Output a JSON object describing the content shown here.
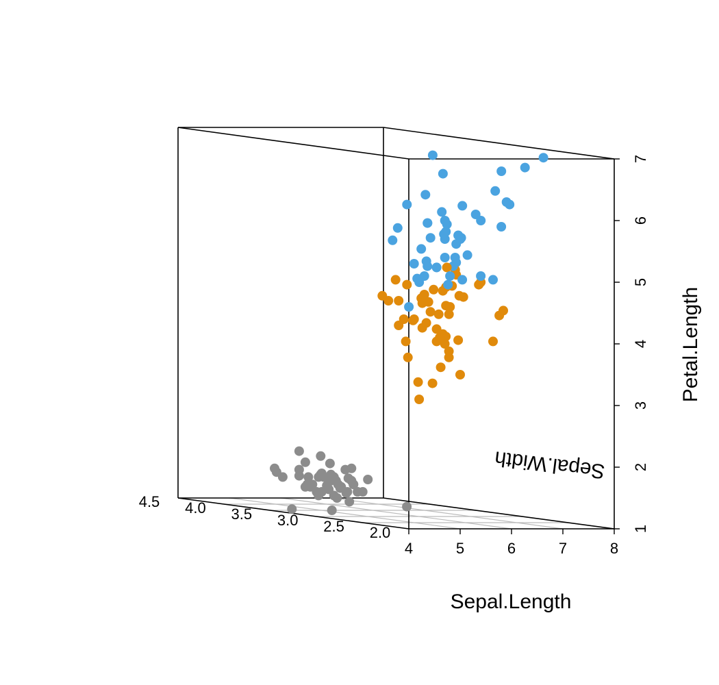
{
  "chart_data": {
    "type": "scatter",
    "plot_style": "3d-box-scatter",
    "colors": {
      "gray": "#8c8c8c",
      "orange": "#e08a0b",
      "blue": "#4aa3e0",
      "frame": "#000000",
      "grid": "#bbbbbb"
    },
    "x_axis": {
      "label": "Sepal.Length",
      "range": [
        4,
        8
      ],
      "ticks": [
        "4",
        "5",
        "6",
        "7",
        "8"
      ]
    },
    "y_axis": {
      "label": "Sepal.Width",
      "range": [
        2.0,
        4.5
      ],
      "ticks": [
        "2.0",
        "2.5",
        "3.0",
        "3.5",
        "4.0",
        "4.5"
      ]
    },
    "z_axis": {
      "label": "Petal.Length",
      "range": [
        1,
        7
      ],
      "ticks": [
        "1",
        "2",
        "3",
        "4",
        "5",
        "6",
        "7"
      ]
    },
    "grid": "bottom plane",
    "series": [
      {
        "color_key": "gray",
        "points": [
          [
            5.1,
            3.5,
            1.4
          ],
          [
            4.9,
            3.0,
            1.4
          ],
          [
            4.7,
            3.2,
            1.3
          ],
          [
            4.6,
            3.1,
            1.5
          ],
          [
            5.0,
            3.6,
            1.4
          ],
          [
            5.4,
            3.9,
            1.7
          ],
          [
            4.6,
            3.4,
            1.4
          ],
          [
            5.0,
            3.4,
            1.5
          ],
          [
            4.4,
            2.9,
            1.4
          ],
          [
            4.9,
            3.1,
            1.5
          ],
          [
            5.4,
            3.7,
            1.5
          ],
          [
            4.8,
            3.4,
            1.6
          ],
          [
            4.8,
            3.0,
            1.4
          ],
          [
            4.3,
            3.0,
            1.1
          ],
          [
            5.8,
            4.0,
            1.2
          ],
          [
            5.7,
            4.4,
            1.5
          ],
          [
            5.4,
            3.9,
            1.3
          ],
          [
            5.1,
            3.5,
            1.4
          ],
          [
            5.7,
            3.8,
            1.7
          ],
          [
            5.1,
            3.8,
            1.5
          ],
          [
            5.4,
            3.4,
            1.7
          ],
          [
            5.1,
            3.7,
            1.5
          ],
          [
            4.6,
            3.6,
            1.0
          ],
          [
            5.1,
            3.3,
            1.7
          ],
          [
            4.8,
            3.4,
            1.9
          ],
          [
            5.0,
            3.0,
            1.6
          ],
          [
            5.0,
            3.4,
            1.6
          ],
          [
            5.2,
            3.5,
            1.5
          ],
          [
            5.2,
            3.4,
            1.4
          ],
          [
            4.7,
            3.2,
            1.6
          ],
          [
            4.8,
            3.1,
            1.6
          ],
          [
            5.4,
            3.4,
            1.5
          ],
          [
            5.2,
            4.1,
            1.5
          ],
          [
            5.5,
            4.2,
            1.4
          ],
          [
            4.9,
            3.1,
            1.5
          ],
          [
            5.0,
            3.2,
            1.2
          ],
          [
            5.5,
            3.5,
            1.3
          ],
          [
            4.9,
            3.6,
            1.4
          ],
          [
            4.4,
            3.0,
            1.3
          ],
          [
            5.1,
            3.4,
            1.5
          ],
          [
            5.0,
            3.5,
            1.3
          ],
          [
            4.5,
            2.3,
            1.3
          ],
          [
            4.4,
            3.2,
            1.3
          ],
          [
            5.0,
            3.5,
            1.6
          ],
          [
            5.1,
            3.8,
            1.9
          ],
          [
            4.8,
            3.0,
            1.4
          ],
          [
            5.1,
            3.8,
            1.6
          ],
          [
            4.6,
            3.2,
            1.4
          ],
          [
            5.3,
            3.7,
            1.5
          ],
          [
            5.0,
            3.3,
            1.4
          ]
        ]
      },
      {
        "color_key": "orange",
        "points": [
          [
            7.0,
            3.2,
            4.7
          ],
          [
            6.4,
            3.2,
            4.5
          ],
          [
            6.9,
            3.1,
            4.9
          ],
          [
            5.5,
            2.3,
            4.0
          ],
          [
            6.5,
            2.8,
            4.6
          ],
          [
            5.7,
            2.8,
            4.5
          ],
          [
            6.3,
            3.3,
            4.7
          ],
          [
            4.9,
            2.4,
            3.3
          ],
          [
            6.6,
            2.9,
            4.6
          ],
          [
            5.2,
            2.7,
            3.9
          ],
          [
            5.0,
            2.0,
            3.5
          ],
          [
            5.9,
            3.0,
            4.2
          ],
          [
            6.0,
            2.2,
            4.0
          ],
          [
            6.1,
            2.9,
            4.7
          ],
          [
            5.6,
            2.9,
            3.6
          ],
          [
            6.7,
            3.1,
            4.4
          ],
          [
            5.6,
            3.0,
            4.5
          ],
          [
            5.8,
            2.7,
            4.1
          ],
          [
            6.2,
            2.2,
            4.5
          ],
          [
            5.6,
            2.5,
            3.9
          ],
          [
            5.9,
            3.2,
            4.8
          ],
          [
            6.1,
            2.8,
            4.0
          ],
          [
            6.3,
            2.5,
            4.9
          ],
          [
            6.1,
            2.8,
            4.7
          ],
          [
            6.4,
            2.9,
            4.3
          ],
          [
            6.6,
            3.0,
            4.4
          ],
          [
            6.8,
            2.8,
            4.8
          ],
          [
            6.7,
            3.0,
            5.0
          ],
          [
            6.0,
            2.9,
            4.5
          ],
          [
            5.7,
            2.6,
            3.5
          ],
          [
            5.5,
            2.4,
            3.8
          ],
          [
            5.5,
            2.4,
            3.7
          ],
          [
            5.8,
            2.7,
            3.9
          ],
          [
            6.0,
            2.7,
            5.1
          ],
          [
            5.4,
            3.0,
            4.5
          ],
          [
            6.0,
            3.4,
            4.5
          ],
          [
            6.7,
            3.1,
            4.7
          ],
          [
            6.3,
            2.3,
            4.4
          ],
          [
            5.6,
            3.0,
            4.1
          ],
          [
            5.5,
            2.5,
            4.0
          ],
          [
            5.5,
            2.6,
            4.4
          ],
          [
            6.1,
            3.0,
            4.6
          ],
          [
            5.8,
            2.6,
            4.0
          ],
          [
            5.0,
            2.3,
            3.3
          ],
          [
            5.6,
            2.7,
            4.2
          ],
          [
            5.7,
            3.0,
            4.2
          ],
          [
            5.7,
            2.9,
            4.2
          ],
          [
            6.2,
            2.9,
            4.3
          ],
          [
            5.1,
            2.5,
            3.0
          ],
          [
            5.7,
            2.8,
            4.1
          ]
        ]
      },
      {
        "color_key": "blue",
        "points": [
          [
            6.3,
            3.3,
            6.0
          ],
          [
            5.8,
            2.7,
            5.1
          ],
          [
            7.1,
            3.0,
            5.9
          ],
          [
            6.3,
            2.9,
            5.6
          ],
          [
            6.5,
            3.0,
            5.8
          ],
          [
            7.6,
            3.0,
            6.6
          ],
          [
            4.9,
            2.5,
            4.5
          ],
          [
            7.3,
            2.9,
            6.3
          ],
          [
            6.7,
            2.5,
            5.8
          ],
          [
            7.2,
            3.6,
            6.1
          ],
          [
            6.5,
            3.2,
            5.1
          ],
          [
            6.4,
            2.7,
            5.3
          ],
          [
            6.8,
            3.0,
            5.5
          ],
          [
            5.7,
            2.5,
            5.0
          ],
          [
            5.8,
            2.8,
            5.1
          ],
          [
            6.4,
            3.2,
            5.3
          ],
          [
            6.5,
            3.0,
            5.5
          ],
          [
            7.7,
            3.8,
            6.7
          ],
          [
            7.7,
            2.6,
            6.9
          ],
          [
            6.0,
            2.2,
            5.0
          ],
          [
            6.9,
            3.2,
            5.7
          ],
          [
            5.6,
            2.8,
            4.9
          ],
          [
            7.7,
            2.8,
            6.7
          ],
          [
            6.3,
            2.7,
            4.9
          ],
          [
            6.7,
            3.3,
            5.7
          ],
          [
            7.2,
            3.2,
            6.0
          ],
          [
            6.2,
            2.8,
            4.8
          ],
          [
            6.1,
            3.0,
            4.9
          ],
          [
            6.4,
            2.8,
            5.6
          ],
          [
            7.2,
            3.0,
            5.8
          ],
          [
            7.4,
            2.8,
            6.1
          ],
          [
            7.9,
            3.8,
            6.4
          ],
          [
            6.4,
            2.8,
            5.6
          ],
          [
            6.3,
            2.8,
            5.1
          ],
          [
            6.1,
            2.6,
            5.6
          ],
          [
            7.7,
            3.0,
            6.1
          ],
          [
            6.3,
            3.4,
            5.6
          ],
          [
            6.4,
            3.1,
            5.5
          ],
          [
            6.0,
            3.0,
            4.8
          ],
          [
            6.9,
            3.1,
            5.4
          ],
          [
            6.7,
            3.1,
            5.6
          ],
          [
            6.9,
            3.1,
            5.1
          ],
          [
            5.8,
            2.7,
            5.1
          ],
          [
            6.8,
            3.2,
            5.9
          ],
          [
            6.7,
            3.3,
            5.7
          ],
          [
            6.7,
            3.0,
            5.2
          ],
          [
            6.3,
            2.5,
            5.0
          ],
          [
            6.5,
            3.0,
            5.2
          ],
          [
            6.2,
            3.4,
            5.4
          ],
          [
            5.9,
            3.0,
            5.1
          ]
        ]
      }
    ]
  }
}
